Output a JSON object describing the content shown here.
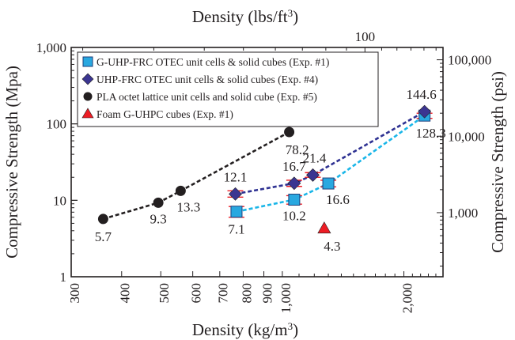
{
  "chart_data": {
    "type": "scatter",
    "x_scale": "log",
    "y_scale": "log",
    "xlabel": "Density (kg/m³)",
    "xlabel_parts": {
      "text": "Density (kg/m",
      "sup": "3",
      "close": ")"
    },
    "ylabel": "Compressive Strength (Mpa)",
    "top_axis_label_parts": {
      "text": "Density (lbs/ft",
      "sup": "3",
      "close": ")"
    },
    "right_axis_label": "Compressive Strength (psi)",
    "xlim": [
      300,
      2500
    ],
    "ylim": [
      1,
      1000
    ],
    "x_ticks": [
      {
        "value": 300,
        "label": "300"
      },
      {
        "value": 400,
        "label": "400"
      },
      {
        "value": 500,
        "label": "500"
      },
      {
        "value": 600,
        "label": "600"
      },
      {
        "value": 700,
        "label": "700"
      },
      {
        "value": 800,
        "label": "800"
      },
      {
        "value": 900,
        "label": "900"
      },
      {
        "value": 1000,
        "label": "1,000"
      },
      {
        "value": 2000,
        "label": "2,000"
      }
    ],
    "y_ticks": [
      {
        "value": 1,
        "label": "1"
      },
      {
        "value": 10,
        "label": "10"
      },
      {
        "value": 100,
        "label": "100"
      },
      {
        "value": 1000,
        "label": "1,000"
      }
    ],
    "top_ticks": [
      {
        "value": 100,
        "label": "100"
      }
    ],
    "right_ticks": [
      {
        "value": 1000,
        "label": "1,000"
      },
      {
        "value": 10000,
        "label": "10,000"
      },
      {
        "value": 100000,
        "label": "100,000"
      }
    ],
    "legend_position": "top-left",
    "series": [
      {
        "name": "G-UHP-FRC OTEC unit cells & solid cubes (Exp. #1)",
        "marker": "square",
        "color": "#29a8e0",
        "line": "#1ab6e8",
        "points": [
          {
            "x": 770,
            "y": 7.1,
            "label": "7.1",
            "err": [
              6.0,
              8.3
            ]
          },
          {
            "x": 1070,
            "y": 10.2,
            "label": "10.2",
            "err": [
              8.9,
              11.5
            ]
          },
          {
            "x": 1300,
            "y": 16.6,
            "label": "16.6",
            "err": [
              15.0,
              18.3
            ]
          },
          {
            "x": 2250,
            "y": 128.3,
            "label": "128.3",
            "err": [
              118,
              138
            ]
          }
        ]
      },
      {
        "name": "UHP-FRC OTEC unit cells & solid cubes (Exp. #4)",
        "marker": "diamond",
        "color": "#3b3591",
        "line": "#2e3192",
        "points": [
          {
            "x": 765,
            "y": 12.1,
            "label": "12.1",
            "err": [
              11.0,
              13.3
            ]
          },
          {
            "x": 1070,
            "y": 16.7,
            "label": "16.7",
            "err": [
              15.2,
              18.3
            ]
          },
          {
            "x": 1190,
            "y": 21.4,
            "label": "21.4",
            "err": [
              20.0,
              23.0
            ]
          },
          {
            "x": 2250,
            "y": 144.6,
            "label": "144.6"
          }
        ]
      },
      {
        "name": "PLA octet lattice unit cells and solid cube (Exp. #5)",
        "marker": "circle",
        "color": "#231f20",
        "line": "#231f20",
        "points": [
          {
            "x": 360,
            "y": 5.7,
            "label": "5.7"
          },
          {
            "x": 493,
            "y": 9.3,
            "label": "9.3"
          },
          {
            "x": 560,
            "y": 13.3,
            "label": "13.3"
          },
          {
            "x": 1040,
            "y": 78.2,
            "label": "78.2"
          }
        ]
      },
      {
        "name": "Foam G-UHPC cubes (Exp. #1)",
        "marker": "triangle",
        "color": "#ed1c24",
        "line": null,
        "points": [
          {
            "x": 1270,
            "y": 4.3,
            "label": "4.3"
          }
        ]
      }
    ],
    "error_bar_color": "#ed1c24"
  }
}
